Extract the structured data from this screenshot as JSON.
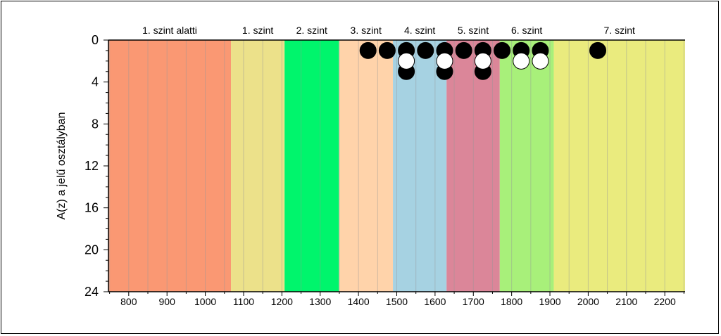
{
  "chart_data": {
    "type": "scatter",
    "title": "",
    "xlabel": "",
    "ylabel": "A(z) a jelű osztályban",
    "xlim": [
      747,
      2253
    ],
    "ylim": [
      24,
      0
    ],
    "x_ticks": [
      800,
      900,
      1000,
      1100,
      1200,
      1300,
      1400,
      1500,
      1600,
      1700,
      1800,
      1900,
      2000,
      2100,
      2200
    ],
    "y_ticks": [
      0,
      4,
      8,
      12,
      16,
      20,
      24
    ],
    "grid": "vertical minor lines every 50",
    "bands": [
      {
        "label": "1. szint alatti",
        "from": 747,
        "to": 1067,
        "color": "#FA9873"
      },
      {
        "label": "1. szint",
        "from": 1067,
        "to": 1207,
        "color": "#ECE18A"
      },
      {
        "label": "2. szint",
        "from": 1207,
        "to": 1349,
        "color": "#00F56C"
      },
      {
        "label": "3. szint",
        "from": 1349,
        "to": 1490,
        "color": "#FFD3AA"
      },
      {
        "label": "4. szint",
        "from": 1490,
        "to": 1630,
        "color": "#A6D2E2"
      },
      {
        "label": "5. szint",
        "from": 1630,
        "to": 1769,
        "color": "#DB8699"
      },
      {
        "label": "6. szint",
        "from": 1769,
        "to": 1910,
        "color": "#A8F07A"
      },
      {
        "label": "7. szint",
        "from": 1910,
        "to": 2253,
        "color": "#EAEB7E"
      }
    ],
    "series": [
      {
        "marker": "filled",
        "color": "#000000",
        "points": [
          {
            "x": 1425,
            "y": 1
          },
          {
            "x": 1475,
            "y": 1
          },
          {
            "x": 1525,
            "y": 1
          },
          {
            "x": 1575,
            "y": 1
          },
          {
            "x": 1625,
            "y": 1
          },
          {
            "x": 1675,
            "y": 1
          },
          {
            "x": 1725,
            "y": 1
          },
          {
            "x": 1775,
            "y": 1
          },
          {
            "x": 1825,
            "y": 1
          },
          {
            "x": 1875,
            "y": 1
          },
          {
            "x": 2025,
            "y": 1
          },
          {
            "x": 1525,
            "y": 3
          },
          {
            "x": 1625,
            "y": 3
          },
          {
            "x": 1725,
            "y": 3
          }
        ]
      },
      {
        "marker": "open",
        "color": "#FFFFFF",
        "points": [
          {
            "x": 1525,
            "y": 2
          },
          {
            "x": 1625,
            "y": 2
          },
          {
            "x": 1725,
            "y": 2
          },
          {
            "x": 1825,
            "y": 2
          },
          {
            "x": 1875,
            "y": 2
          }
        ]
      }
    ]
  }
}
